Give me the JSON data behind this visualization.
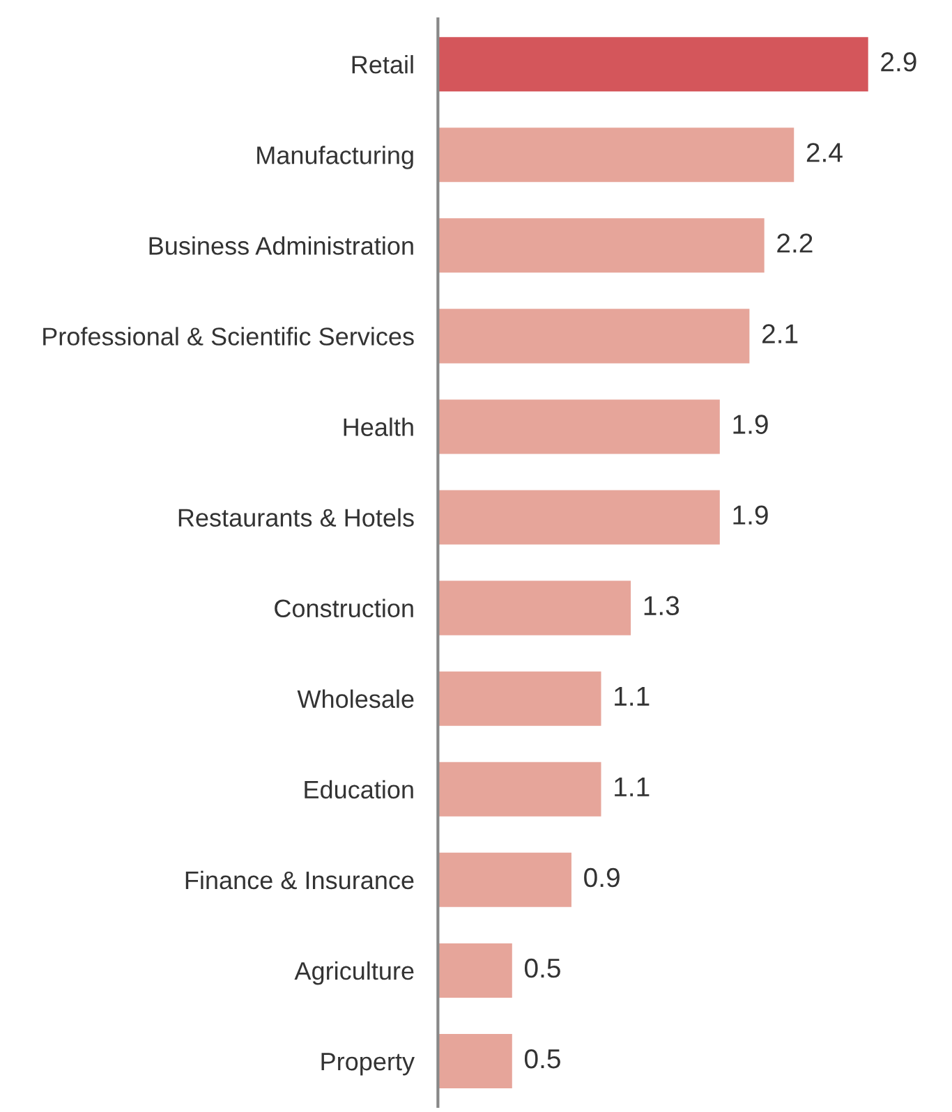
{
  "chart_data": {
    "type": "bar",
    "orientation": "horizontal",
    "categories": [
      "Retail",
      "Manufacturing",
      "Business Administration",
      "Professional & Scientific Services",
      "Health",
      "Restaurants & Hotels",
      "Construction",
      "Wholesale",
      "Education",
      "Finance & Insurance",
      "Agriculture",
      "Property"
    ],
    "values": [
      2.9,
      2.4,
      2.2,
      2.1,
      1.9,
      1.9,
      1.3,
      1.1,
      1.1,
      0.9,
      0.5,
      0.5
    ],
    "colors": [
      "#d4565b",
      "#e6a59a",
      "#e6a59a",
      "#e6a59a",
      "#e6a59a",
      "#e6a59a",
      "#e6a59a",
      "#e6a59a",
      "#e6a59a",
      "#e6a59a",
      "#e6a59a",
      "#e6a59a"
    ],
    "data_labels": true,
    "grid": false,
    "legend": false,
    "tick_labels": "y"
  }
}
